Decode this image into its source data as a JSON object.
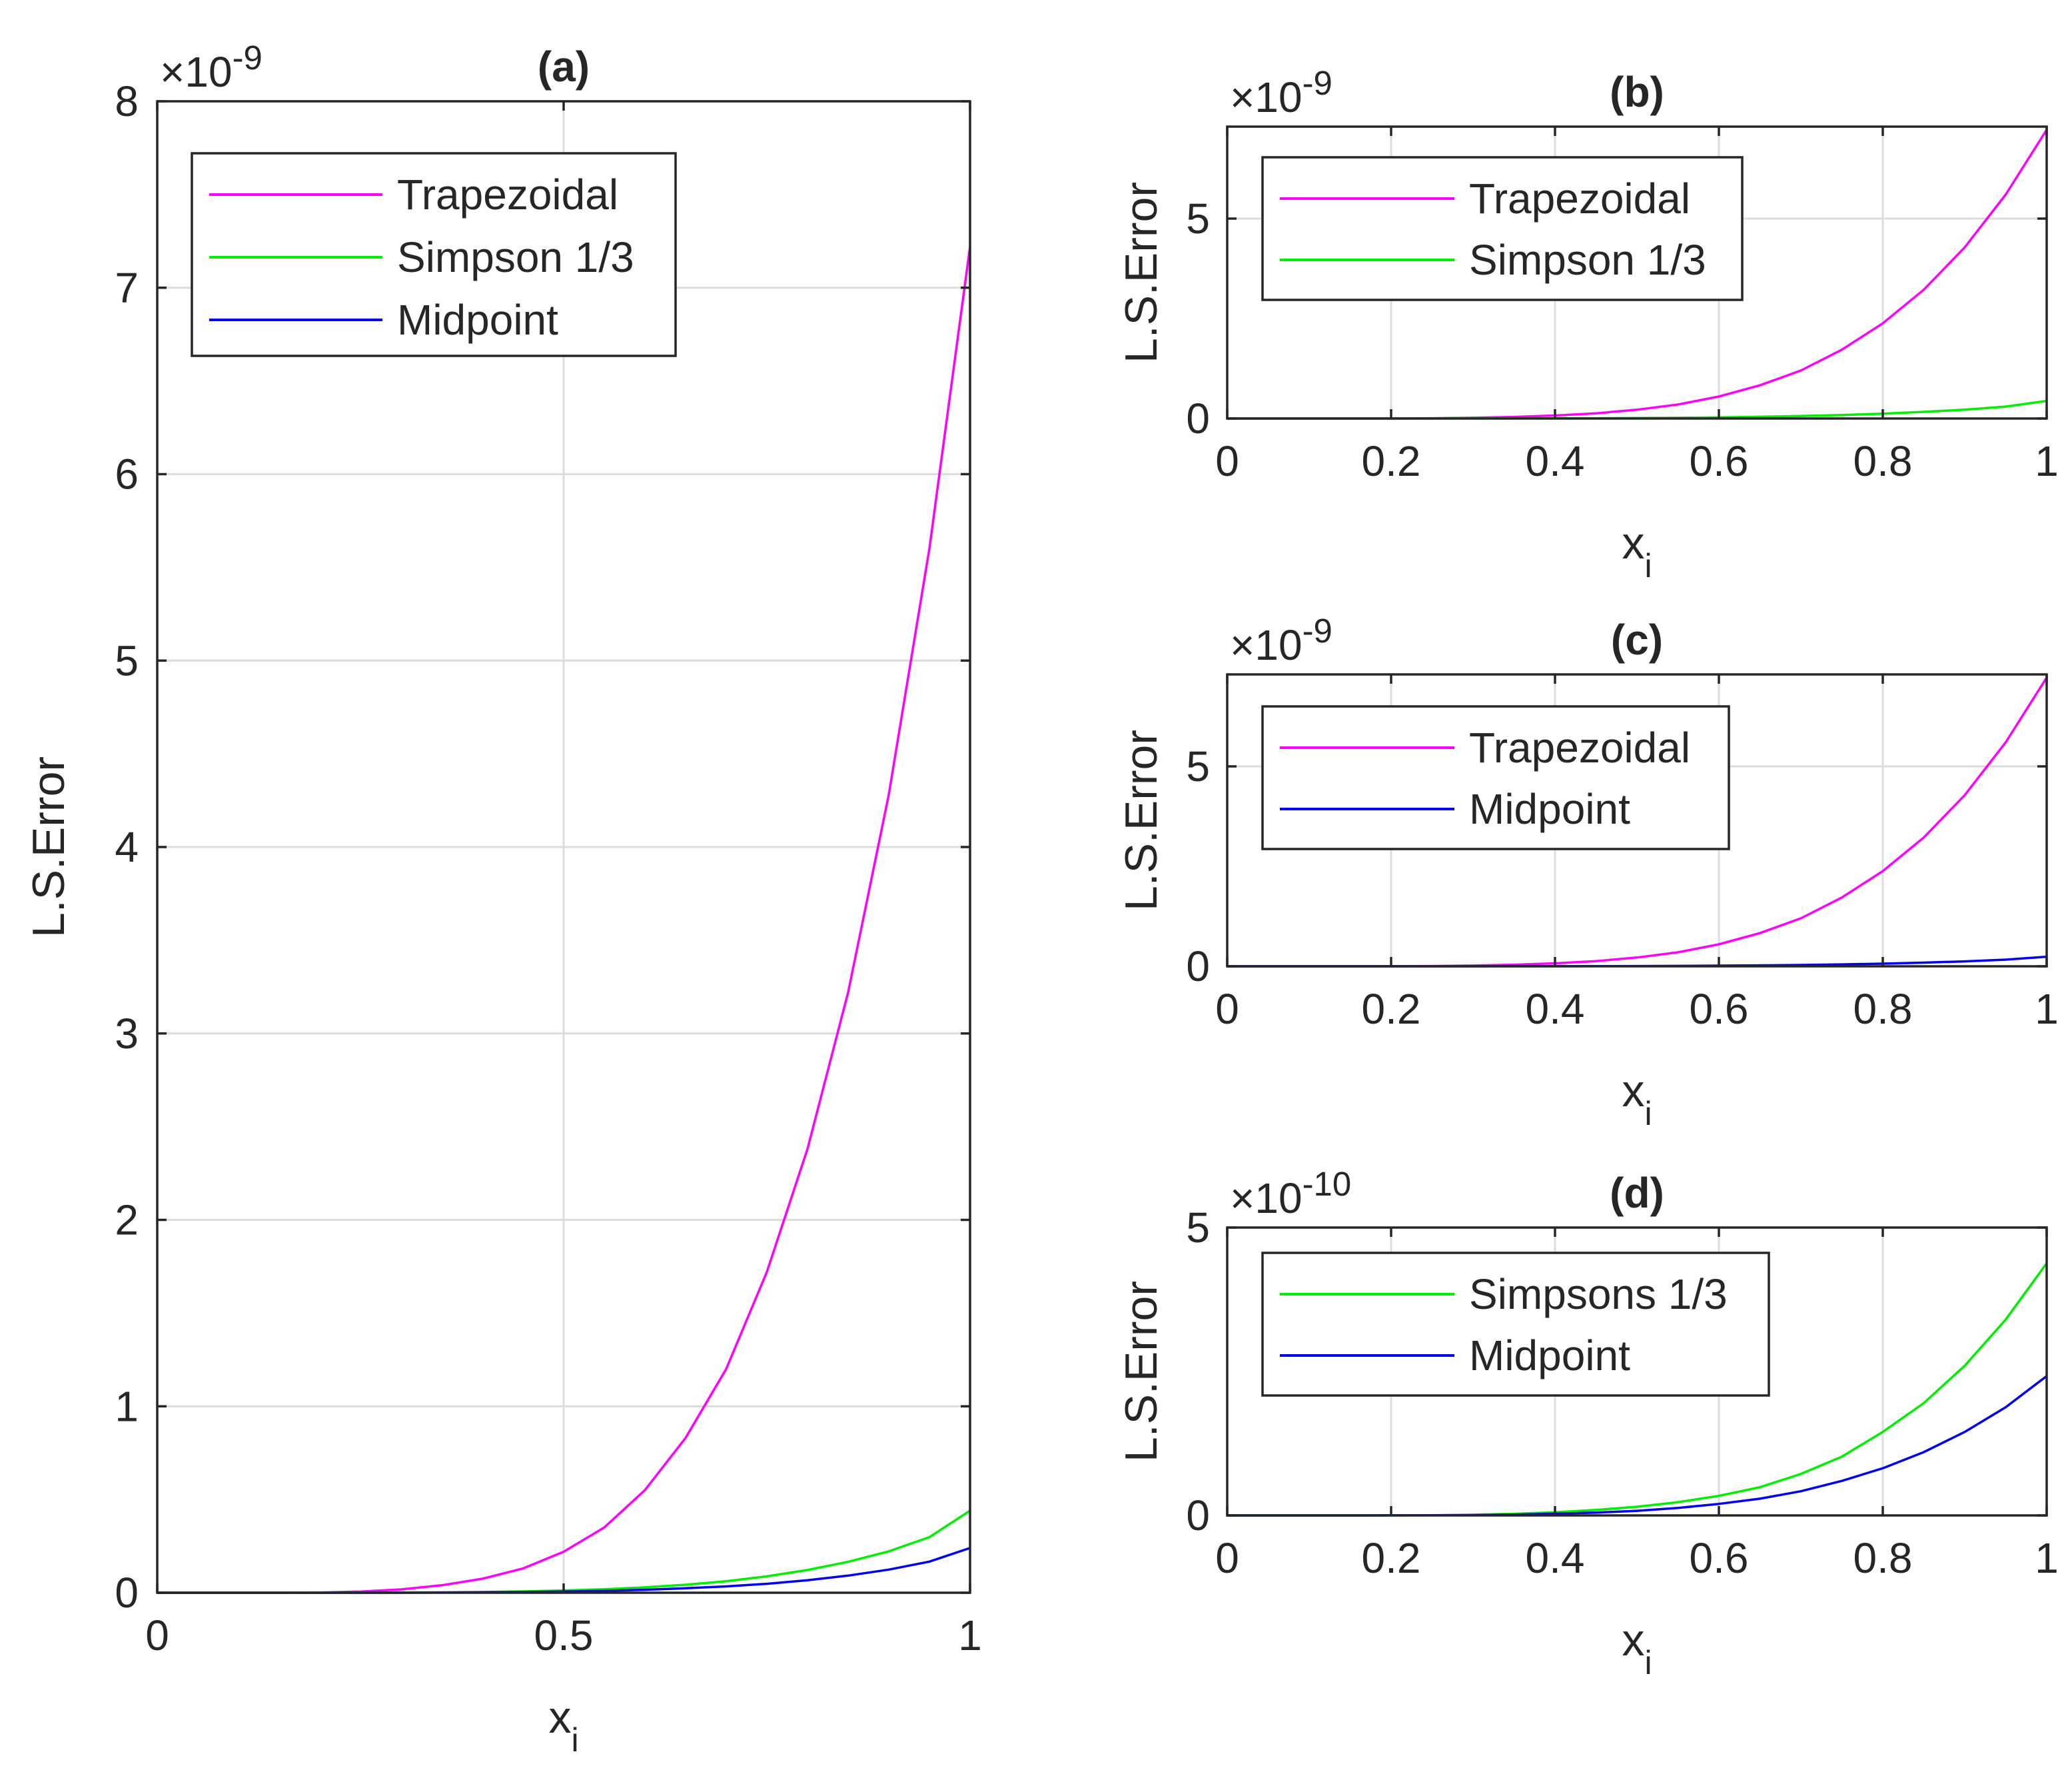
{
  "chart_data": [
    {
      "id": "a",
      "type": "line",
      "title": "(a)",
      "xlabel": "x",
      "xlabel_subscript": "i",
      "ylabel": "L.S.Error",
      "exponent_label": "×10",
      "exponent": "-9",
      "xlim": [
        0,
        1
      ],
      "ylim": [
        0,
        8
      ],
      "xticks": [
        0,
        0.5,
        1
      ],
      "xtick_labels": [
        "0",
        "0.5",
        "1"
      ],
      "yticks": [
        0,
        1,
        2,
        3,
        4,
        5,
        6,
        7,
        8
      ],
      "ytick_labels": [
        "0",
        "1",
        "2",
        "3",
        "4",
        "5",
        "6",
        "7",
        "8"
      ],
      "grid": true,
      "legend_position": "top-left",
      "x": [
        0,
        0.05,
        0.1,
        0.15,
        0.2,
        0.25,
        0.3,
        0.35,
        0.4,
        0.45,
        0.5,
        0.55,
        0.6,
        0.65,
        0.7,
        0.75,
        0.8,
        0.85,
        0.9,
        0.95,
        1
      ],
      "series": [
        {
          "name": "Trapezoidal",
          "color": "#ff00ff",
          "values": [
            0,
            0,
            0,
            0,
            0.001,
            0.006,
            0.018,
            0.04,
            0.075,
            0.13,
            0.22,
            0.35,
            0.55,
            0.83,
            1.2,
            1.72,
            2.38,
            3.22,
            4.28,
            5.6,
            7.22
          ]
        },
        {
          "name": "Simpson 1/3",
          "color": "#00ee00",
          "values": [
            0,
            0,
            0,
            0,
            0,
            0,
            0.001,
            0.002,
            0.004,
            0.007,
            0.012,
            0.019,
            0.029,
            0.043,
            0.062,
            0.088,
            0.122,
            0.166,
            0.222,
            0.298,
            0.44
          ]
        },
        {
          "name": "Midpoint",
          "color": "#0000ee",
          "values": [
            0,
            0,
            0,
            0,
            0,
            0,
            0,
            0.001,
            0.002,
            0.004,
            0.006,
            0.01,
            0.016,
            0.024,
            0.034,
            0.048,
            0.067,
            0.092,
            0.124,
            0.167,
            0.24
          ]
        }
      ]
    },
    {
      "id": "b",
      "type": "line",
      "title": "(b)",
      "xlabel": "x",
      "xlabel_subscript": "i",
      "ylabel": "L.S.Error",
      "exponent_label": "×10",
      "exponent": "-9",
      "xlim": [
        0,
        1
      ],
      "ylim": [
        0,
        7.3
      ],
      "xticks": [
        0,
        0.2,
        0.4,
        0.6,
        0.8,
        1
      ],
      "xtick_labels": [
        "0",
        "0.2",
        "0.4",
        "0.6",
        "0.8",
        "1"
      ],
      "yticks": [
        0,
        5
      ],
      "ytick_labels": [
        "0",
        "5"
      ],
      "grid": true,
      "legend_position": "top-left",
      "x": [
        0,
        0.05,
        0.1,
        0.15,
        0.2,
        0.25,
        0.3,
        0.35,
        0.4,
        0.45,
        0.5,
        0.55,
        0.6,
        0.65,
        0.7,
        0.75,
        0.8,
        0.85,
        0.9,
        0.95,
        1
      ],
      "series": [
        {
          "name": "Trapezoidal",
          "color": "#ff00ff",
          "values": [
            0,
            0,
            0,
            0,
            0.001,
            0.006,
            0.018,
            0.04,
            0.075,
            0.13,
            0.22,
            0.35,
            0.55,
            0.83,
            1.2,
            1.72,
            2.38,
            3.22,
            4.28,
            5.6,
            7.22
          ]
        },
        {
          "name": "Simpson 1/3",
          "color": "#00ee00",
          "values": [
            0,
            0,
            0,
            0,
            0,
            0,
            0.001,
            0.002,
            0.004,
            0.007,
            0.012,
            0.019,
            0.029,
            0.043,
            0.062,
            0.088,
            0.122,
            0.166,
            0.222,
            0.298,
            0.44
          ]
        }
      ]
    },
    {
      "id": "c",
      "type": "line",
      "title": "(c)",
      "xlabel": "x",
      "xlabel_subscript": "i",
      "ylabel": "L.S.Error",
      "exponent_label": "×10",
      "exponent": "-9",
      "xlim": [
        0,
        1
      ],
      "ylim": [
        0,
        7.3
      ],
      "xticks": [
        0,
        0.2,
        0.4,
        0.6,
        0.8,
        1
      ],
      "xtick_labels": [
        "0",
        "0.2",
        "0.4",
        "0.6",
        "0.8",
        "1"
      ],
      "yticks": [
        0,
        5
      ],
      "ytick_labels": [
        "0",
        "5"
      ],
      "grid": true,
      "legend_position": "top-left",
      "x": [
        0,
        0.05,
        0.1,
        0.15,
        0.2,
        0.25,
        0.3,
        0.35,
        0.4,
        0.45,
        0.5,
        0.55,
        0.6,
        0.65,
        0.7,
        0.75,
        0.8,
        0.85,
        0.9,
        0.95,
        1
      ],
      "series": [
        {
          "name": "Trapezoidal",
          "color": "#ff00ff",
          "values": [
            0,
            0,
            0,
            0,
            0.001,
            0.006,
            0.018,
            0.04,
            0.075,
            0.13,
            0.22,
            0.35,
            0.55,
            0.83,
            1.2,
            1.72,
            2.38,
            3.22,
            4.28,
            5.6,
            7.22
          ]
        },
        {
          "name": "Midpoint",
          "color": "#0000ee",
          "values": [
            0,
            0,
            0,
            0,
            0,
            0,
            0,
            0.001,
            0.002,
            0.004,
            0.006,
            0.01,
            0.016,
            0.024,
            0.034,
            0.048,
            0.067,
            0.092,
            0.124,
            0.167,
            0.24
          ]
        }
      ]
    },
    {
      "id": "d",
      "type": "line",
      "title": "(d)",
      "xlabel": "x",
      "xlabel_subscript": "i",
      "ylabel": "L.S.Error",
      "exponent_label": "×10",
      "exponent": "-10",
      "xlim": [
        0,
        1
      ],
      "ylim": [
        0,
        5
      ],
      "xticks": [
        0,
        0.2,
        0.4,
        0.6,
        0.8,
        1
      ],
      "xtick_labels": [
        "0",
        "0.2",
        "0.4",
        "0.6",
        "0.8",
        "1"
      ],
      "yticks": [
        0,
        5
      ],
      "ytick_labels": [
        "0",
        "5"
      ],
      "grid": true,
      "legend_position": "top-left",
      "x": [
        0,
        0.05,
        0.1,
        0.15,
        0.2,
        0.25,
        0.3,
        0.35,
        0.4,
        0.45,
        0.5,
        0.55,
        0.6,
        0.65,
        0.7,
        0.75,
        0.8,
        0.85,
        0.9,
        0.95,
        1
      ],
      "series": [
        {
          "name": "Simpsons 1/3",
          "color": "#00ee00",
          "values": [
            0,
            0,
            0,
            0,
            0.001,
            0.004,
            0.012,
            0.028,
            0.055,
            0.095,
            0.15,
            0.23,
            0.34,
            0.49,
            0.72,
            1.02,
            1.45,
            1.95,
            2.6,
            3.4,
            4.38
          ]
        },
        {
          "name": "Midpoint",
          "color": "#0000ee",
          "values": [
            0,
            0,
            0,
            0,
            0.001,
            0.002,
            0.006,
            0.014,
            0.03,
            0.05,
            0.08,
            0.13,
            0.2,
            0.29,
            0.42,
            0.6,
            0.82,
            1.1,
            1.45,
            1.88,
            2.42
          ]
        }
      ]
    }
  ]
}
